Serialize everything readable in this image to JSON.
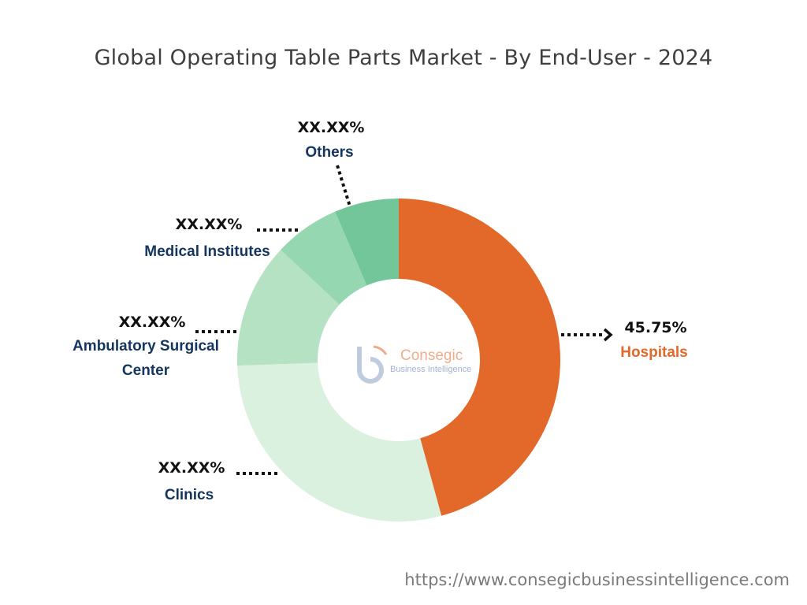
{
  "chart_data": {
    "type": "pie",
    "title": "Global Operating Table Parts Market - By End-User - 2024",
    "slices": [
      {
        "label": "Hospitals",
        "value_text": "45.75%",
        "value": 45.75,
        "color": "#E2692A",
        "label_color": "#E2692A"
      },
      {
        "label": "Clinics",
        "value_text": "XX.XX%",
        "value": 28.7,
        "color": "#DBF1DF",
        "label_color": "#14355E"
      },
      {
        "label": "Ambulatory Surgical Center",
        "label_lines": [
          "Ambulatory Surgical",
          "Center"
        ],
        "value_text": "XX.XX%",
        "value": 12.5,
        "color": "#B5E2C2",
        "label_color": "#14355E"
      },
      {
        "label": "Medical Institutes",
        "value_text": "XX.XX%",
        "value": 6.6,
        "color": "#95D7B0",
        "label_color": "#14355E"
      },
      {
        "label": "Others",
        "value_text": "XX.XX%",
        "value": 6.45,
        "color": "#73C69A",
        "label_color": "#14355E"
      }
    ]
  },
  "logo": {
    "name": "Consegic",
    "tagline": "Business Intelligence"
  },
  "footer": {
    "url": "https://www.consegicbusinessintelligence.com"
  }
}
